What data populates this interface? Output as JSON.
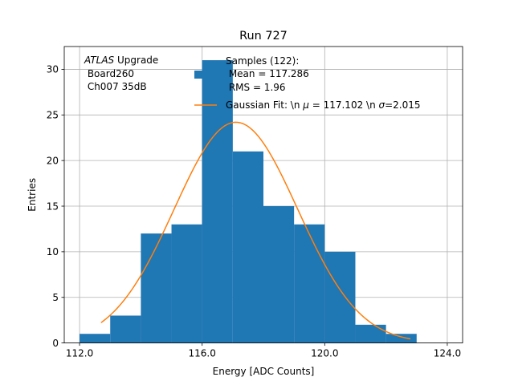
{
  "chart_data": {
    "type": "bar",
    "title": "Run 727",
    "xlabel": "Energy [ADC Counts]",
    "ylabel": "Entries",
    "xlim": [
      111.5,
      124.5
    ],
    "ylim": [
      0,
      32.5
    ],
    "x_ticks": [
      112,
      116,
      120,
      124
    ],
    "x_tick_labels": [
      "112.0",
      "116.0",
      "120.0",
      "124.0"
    ],
    "y_ticks": [
      0,
      5,
      10,
      15,
      20,
      25,
      30
    ],
    "y_tick_labels": [
      "0",
      "5",
      "10",
      "15",
      "20",
      "25",
      "30"
    ],
    "grid": true,
    "bin_edges": [
      112,
      113,
      114,
      115,
      116,
      117,
      118,
      119,
      120,
      121,
      122,
      123
    ],
    "values": [
      1,
      3,
      12,
      13,
      31,
      21,
      15,
      13,
      10,
      2,
      1
    ],
    "fit": {
      "type": "gaussian",
      "amplitude": 24.2,
      "mu": 117.102,
      "sigma": 2.015,
      "x_range": [
        112.7,
        122.8
      ]
    },
    "colors": {
      "bars": "#1f77b4",
      "fit": "#ff7f0e",
      "grid": "#b0b0b0"
    },
    "annotation": {
      "italic": "ATLAS",
      "rest": " Upgrade",
      "line2": " Board260",
      "line3": " Ch007 35dB"
    },
    "legend": {
      "placement": "top-right",
      "hist_label_line1": "Samples (122):",
      "hist_label_line2": " Mean = 117.286",
      "hist_label_line3": " RMS = 1.96",
      "fit_label_prefix": "Gaussian Fit: \\n ",
      "fit_mu_symbol": "μ",
      "fit_label_mid": " = 117.102 \\n ",
      "fit_sigma_symbol": "σ",
      "fit_label_suffix": "=2.015"
    }
  }
}
